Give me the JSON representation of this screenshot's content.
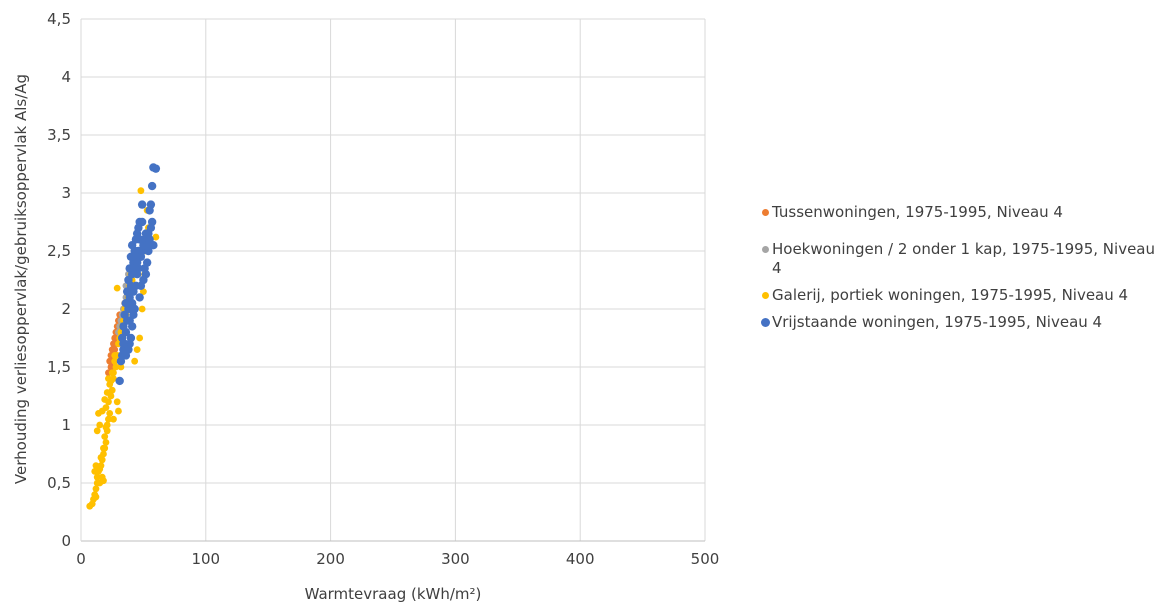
{
  "chart_data": {
    "type": "scatter",
    "title": "",
    "xlabel": "Warmtevraag (kWh/m²)",
    "ylabel": "Verhouding verliesoppervlak/gebruiksoppervlak Als/Ag",
    "xlim": [
      0,
      500
    ],
    "ylim": [
      0,
      4.5
    ],
    "x_ticks": [
      "0",
      "100",
      "200",
      "300",
      "400",
      "500"
    ],
    "y_ticks": [
      "0",
      "0,5",
      "1",
      "1,5",
      "2",
      "2,5",
      "3",
      "3,5",
      "4",
      "4,5"
    ],
    "grid": true,
    "legend_position": "right",
    "series": [
      {
        "name": "Tussenwoningen, 1975-1995, Niveau 4",
        "color": "#ED7D31",
        "points": [
          [
            22,
            1.45
          ],
          [
            23,
            1.55
          ],
          [
            24,
            1.6
          ],
          [
            25,
            1.65
          ],
          [
            26,
            1.7
          ],
          [
            27,
            1.75
          ],
          [
            28,
            1.8
          ],
          [
            29,
            1.85
          ],
          [
            30,
            1.9
          ],
          [
            31,
            1.95
          ],
          [
            24,
            1.5
          ],
          [
            26,
            1.6
          ],
          [
            28,
            1.7
          ],
          [
            30,
            1.8
          ],
          [
            32,
            1.9
          ],
          [
            34,
            2.0
          ],
          [
            33,
            1.95
          ],
          [
            35,
            2.05
          ],
          [
            25,
            1.55
          ],
          [
            27,
            1.65
          ]
        ]
      },
      {
        "name": "Hoekwoningen / 2 onder 1 kap, 1975-1995, Niveau 4",
        "color": "#A5A5A5",
        "points": [
          [
            30,
            1.8
          ],
          [
            32,
            1.9
          ],
          [
            34,
            2.0
          ],
          [
            36,
            2.1
          ],
          [
            38,
            2.2
          ],
          [
            40,
            2.3
          ],
          [
            42,
            2.4
          ],
          [
            44,
            2.5
          ],
          [
            35,
            2.05
          ],
          [
            37,
            2.15
          ],
          [
            39,
            2.25
          ],
          [
            41,
            2.35
          ],
          [
            43,
            2.45
          ],
          [
            33,
            1.95
          ],
          [
            31,
            1.85
          ],
          [
            36,
            2.2
          ],
          [
            38,
            2.3
          ]
        ]
      },
      {
        "name": "Galerij, portiek woningen, 1975-1995, Niveau 4",
        "color": "#FFC000",
        "points": [
          [
            7,
            0.3
          ],
          [
            9,
            0.32
          ],
          [
            10,
            0.36
          ],
          [
            11,
            0.4
          ],
          [
            12,
            0.45
          ],
          [
            12,
            0.38
          ],
          [
            13,
            0.5
          ],
          [
            13,
            0.55
          ],
          [
            14,
            0.6
          ],
          [
            15,
            0.62
          ],
          [
            15,
            0.5
          ],
          [
            16,
            0.65
          ],
          [
            17,
            0.7
          ],
          [
            17,
            0.55
          ],
          [
            18,
            0.75
          ],
          [
            18,
            0.52
          ],
          [
            19,
            0.8
          ],
          [
            20,
            0.85
          ],
          [
            19,
            0.9
          ],
          [
            21,
            0.95
          ],
          [
            21,
            1.0
          ],
          [
            22,
            1.05
          ],
          [
            23,
            1.1
          ],
          [
            20,
            1.15
          ],
          [
            22,
            1.2
          ],
          [
            24,
            1.25
          ],
          [
            25,
            1.3
          ],
          [
            23,
            1.35
          ],
          [
            26,
            1.4
          ],
          [
            26,
            1.45
          ],
          [
            28,
            1.5
          ],
          [
            27,
            1.55
          ],
          [
            29,
            1.6
          ],
          [
            30,
            1.7
          ],
          [
            31,
            1.75
          ],
          [
            32,
            1.8
          ],
          [
            15,
            1.0
          ],
          [
            13,
            0.95
          ],
          [
            14,
            1.1
          ],
          [
            17,
            1.12
          ],
          [
            19,
            1.22
          ],
          [
            21,
            1.28
          ],
          [
            24,
            1.38
          ],
          [
            25,
            1.45
          ],
          [
            29,
            1.2
          ],
          [
            30,
            1.12
          ],
          [
            26,
            1.05
          ],
          [
            32,
            1.5
          ],
          [
            33,
            1.85
          ],
          [
            34,
            1.9
          ],
          [
            35,
            2.0
          ],
          [
            36,
            1.95
          ],
          [
            37,
            2.05
          ],
          [
            38,
            2.1
          ],
          [
            39,
            2.2
          ],
          [
            40,
            2.3
          ],
          [
            41,
            2.25
          ],
          [
            42,
            2.35
          ],
          [
            43,
            1.55
          ],
          [
            45,
            1.65
          ],
          [
            47,
            1.75
          ],
          [
            49,
            2.0
          ],
          [
            50,
            2.15
          ],
          [
            51,
            2.3
          ],
          [
            52,
            2.5
          ],
          [
            54,
            2.7
          ],
          [
            55,
            2.6
          ],
          [
            57,
            2.75
          ],
          [
            60,
            2.62
          ],
          [
            48,
            3.02
          ],
          [
            53,
            2.85
          ],
          [
            29,
            2.18
          ],
          [
            16,
            0.72
          ],
          [
            18,
            0.8
          ],
          [
            11,
            0.6
          ],
          [
            12,
            0.65
          ],
          [
            20,
            0.98
          ],
          [
            22,
            1.4
          ],
          [
            27,
            1.6
          ]
        ]
      },
      {
        "name": "Vrijstaande woningen, 1975-1995, Niveau 4",
        "color": "#4472C4",
        "points": [
          [
            31,
            1.38
          ],
          [
            32,
            1.55
          ],
          [
            33,
            1.6
          ],
          [
            34,
            1.65
          ],
          [
            35,
            1.7
          ],
          [
            33,
            1.75
          ],
          [
            36,
            1.8
          ],
          [
            34,
            1.85
          ],
          [
            37,
            1.9
          ],
          [
            35,
            1.95
          ],
          [
            38,
            2.0
          ],
          [
            36,
            2.05
          ],
          [
            39,
            2.1
          ],
          [
            37,
            2.15
          ],
          [
            40,
            2.2
          ],
          [
            38,
            2.25
          ],
          [
            41,
            2.3
          ],
          [
            39,
            2.35
          ],
          [
            42,
            2.4
          ],
          [
            40,
            2.45
          ],
          [
            43,
            2.5
          ],
          [
            41,
            2.55
          ],
          [
            44,
            2.6
          ],
          [
            45,
            2.65
          ],
          [
            46,
            2.7
          ],
          [
            47,
            2.75
          ],
          [
            48,
            2.45
          ],
          [
            49,
            2.5
          ],
          [
            50,
            2.55
          ],
          [
            51,
            2.6
          ],
          [
            52,
            2.65
          ],
          [
            53,
            2.4
          ],
          [
            54,
            2.5
          ],
          [
            55,
            2.6
          ],
          [
            56,
            2.7
          ],
          [
            57,
            2.75
          ],
          [
            58,
            2.55
          ],
          [
            56,
            2.9
          ],
          [
            55,
            2.85
          ],
          [
            49,
            2.9
          ],
          [
            57,
            3.06
          ],
          [
            58,
            3.22
          ],
          [
            60,
            3.21
          ],
          [
            44,
            2.2
          ],
          [
            45,
            2.3
          ],
          [
            46,
            2.35
          ],
          [
            47,
            2.1
          ],
          [
            43,
            2.0
          ],
          [
            42,
            1.95
          ],
          [
            41,
            1.85
          ],
          [
            40,
            1.75
          ],
          [
            39,
            1.7
          ],
          [
            38,
            1.65
          ],
          [
            48,
            2.2
          ],
          [
            50,
            2.25
          ],
          [
            52,
            2.3
          ],
          [
            46,
            2.5
          ],
          [
            47,
            2.6
          ],
          [
            44,
            2.45
          ],
          [
            42,
            2.15
          ],
          [
            36,
            1.6
          ],
          [
            34,
            1.7
          ],
          [
            39,
            1.9
          ],
          [
            41,
            2.05
          ],
          [
            43,
            2.35
          ],
          [
            45,
            2.4
          ],
          [
            51,
            2.35
          ],
          [
            53,
            2.55
          ],
          [
            54,
            2.65
          ],
          [
            49,
            2.75
          ]
        ]
      }
    ]
  }
}
